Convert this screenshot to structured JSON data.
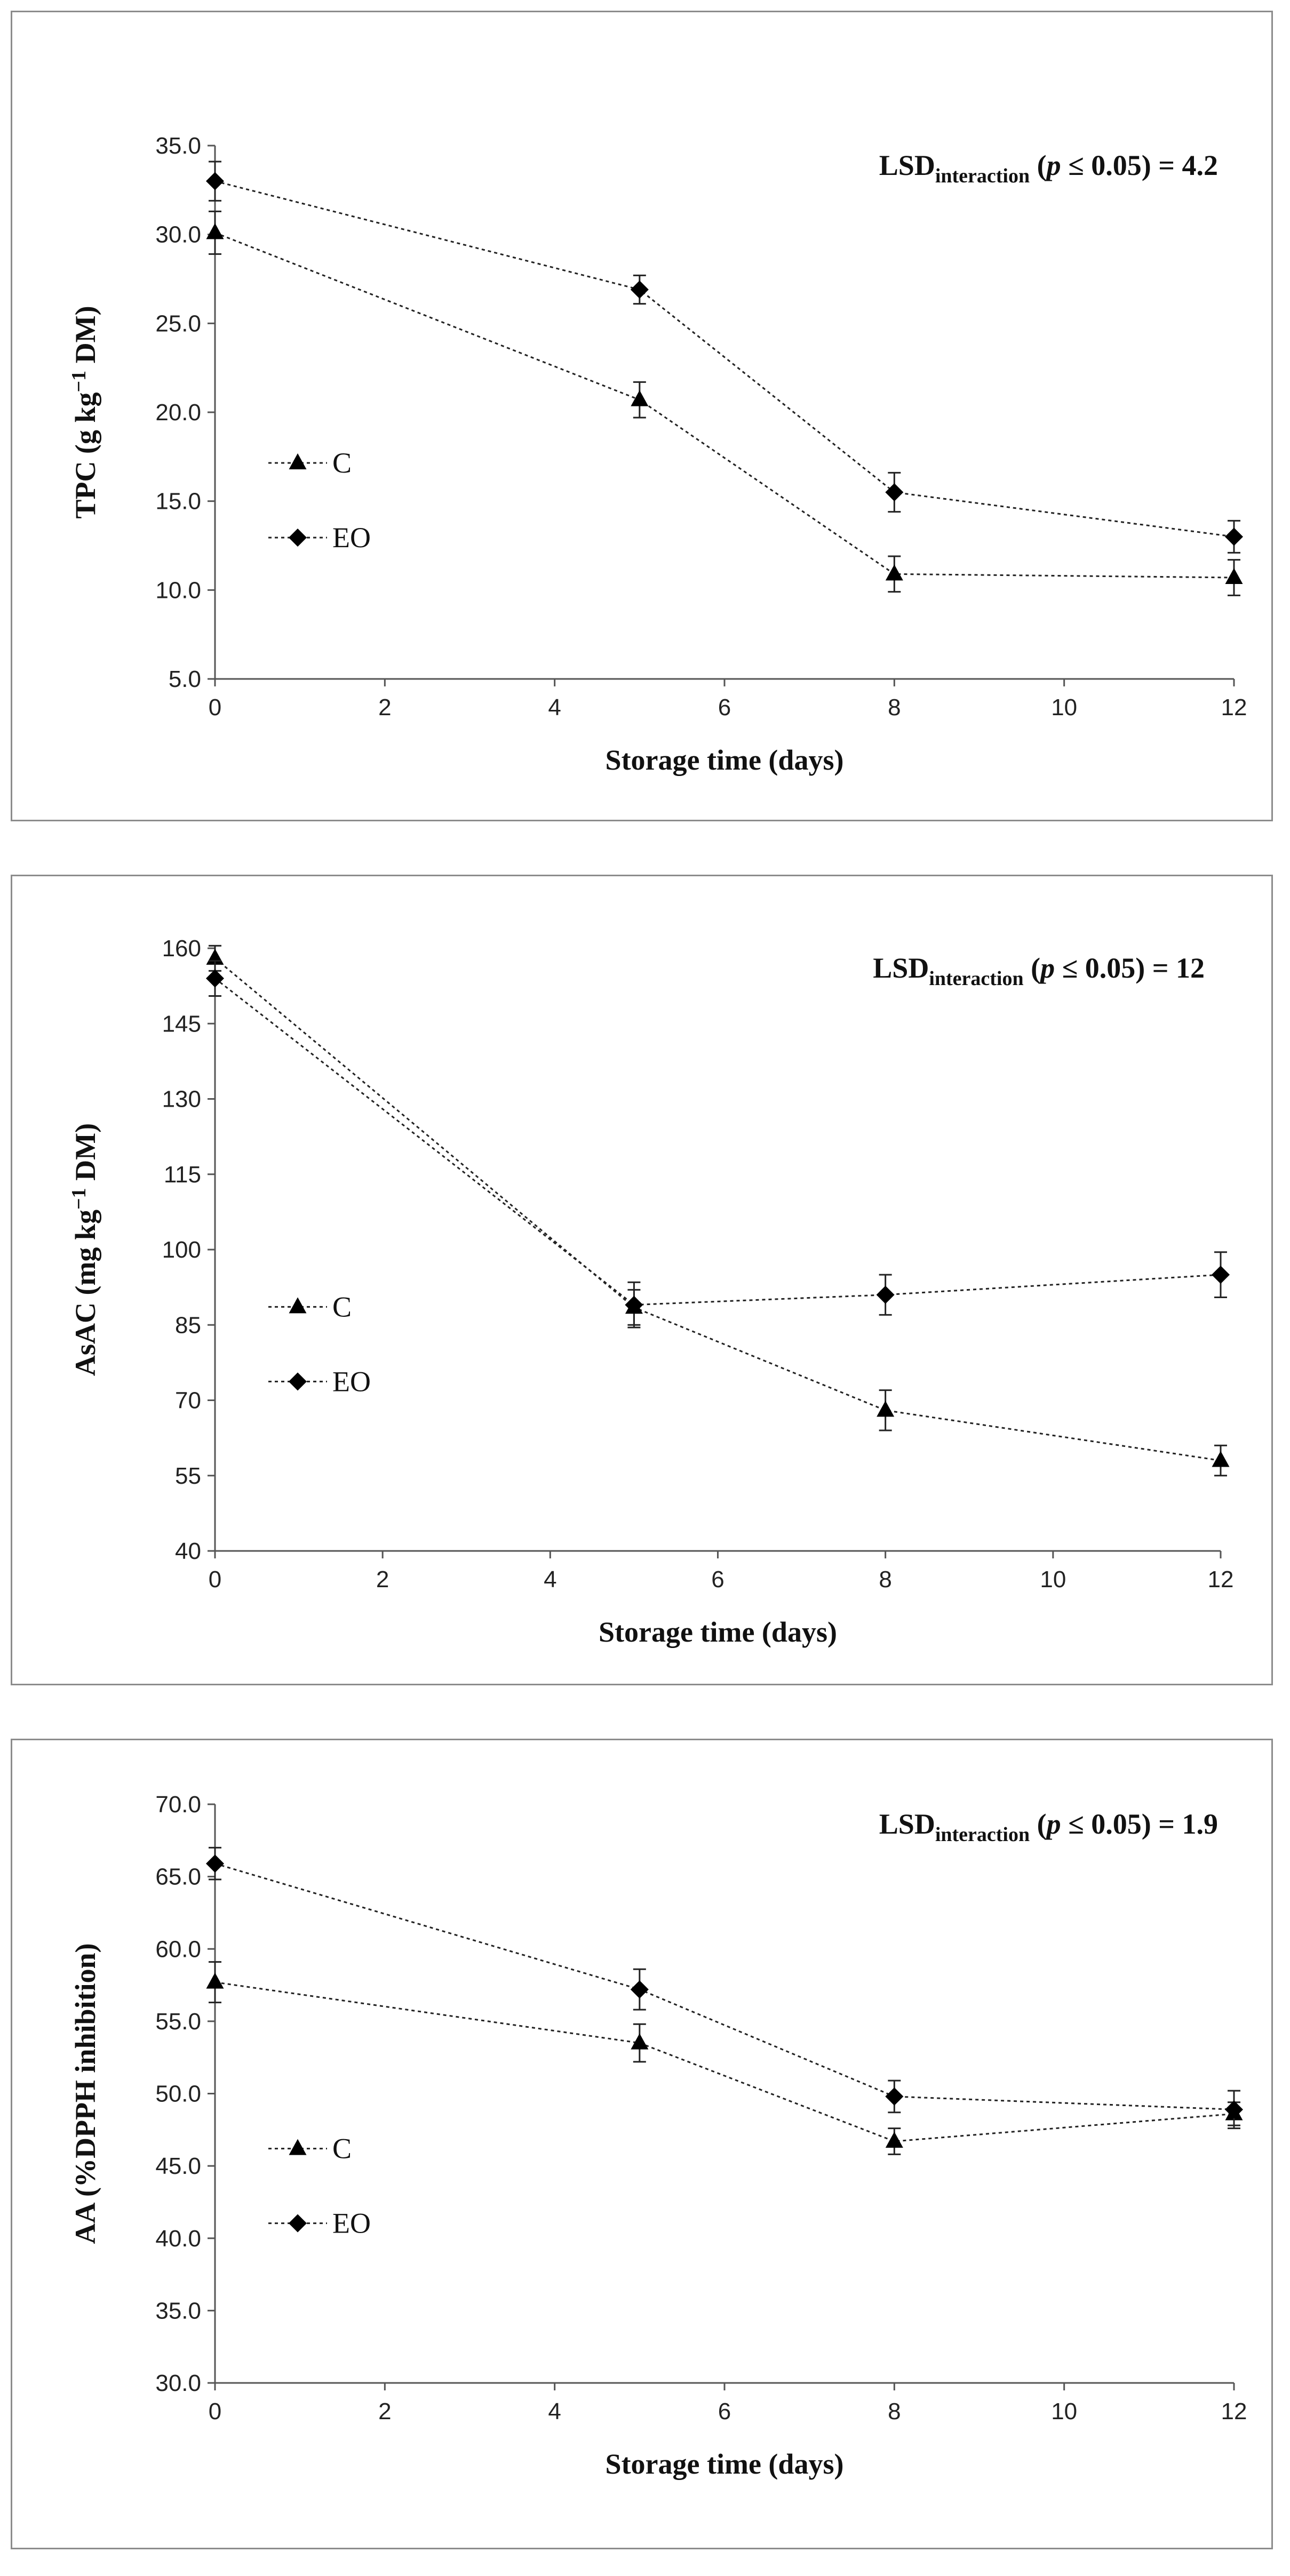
{
  "chart_data": [
    {
      "type": "line",
      "ylabel_main": "TPC (g  kg",
      "ylabel_sup": "−1",
      "ylabel_tail": " DM)",
      "xlabel": "Storage time (days)",
      "annotation": {
        "prefix": "LSD",
        "sub": "interaction",
        "open": " (",
        "p": "p",
        "cond": " ≤ 0.05) = 4.2"
      },
      "xlim": [
        0,
        12
      ],
      "xticks": [
        0,
        2,
        4,
        6,
        8,
        10,
        12
      ],
      "xtick_labels": [
        "0",
        "2",
        "4",
        "6",
        "8",
        "10",
        "12"
      ],
      "ylim": [
        5,
        35
      ],
      "yticks": [
        5,
        10,
        15,
        20,
        25,
        30,
        35
      ],
      "ytick_labels": [
        "5.0",
        "10.0",
        "15.0",
        "20.0",
        "25.0",
        "30.0",
        "35.0"
      ],
      "x": [
        0,
        5,
        8,
        12
      ],
      "series": [
        {
          "name": "C",
          "marker": "triangle",
          "values": [
            30.1,
            20.7,
            10.9,
            10.7
          ],
          "errors": [
            1.2,
            1.0,
            1.0,
            1.0
          ]
        },
        {
          "name": "EO",
          "marker": "diamond",
          "values": [
            33.0,
            26.9,
            15.5,
            13.0
          ],
          "errors": [
            1.1,
            0.8,
            1.1,
            0.9
          ]
        }
      ],
      "legend": {
        "position": "left-middle",
        "entries": [
          "C",
          "EO"
        ]
      }
    },
    {
      "type": "line",
      "ylabel_main": "AsAC (mg  kg",
      "ylabel_sup": "−1",
      "ylabel_tail": " DM)",
      "xlabel": "Storage time (days)",
      "annotation": {
        "prefix": "LSD",
        "sub": "interaction",
        "open": " (",
        "p": "p",
        "cond": " ≤ 0.05) = 12"
      },
      "xlim": [
        0,
        12
      ],
      "xticks": [
        0,
        2,
        4,
        6,
        8,
        10,
        12
      ],
      "xtick_labels": [
        "0",
        "2",
        "4",
        "6",
        "8",
        "10",
        "12"
      ],
      "ylim": [
        40,
        160
      ],
      "yticks": [
        40,
        55,
        70,
        85,
        100,
        115,
        130,
        145,
        160
      ],
      "ytick_labels": [
        "40",
        "55",
        "70",
        "85",
        "100",
        "115",
        "130",
        "145",
        "160"
      ],
      "x": [
        0,
        5,
        8,
        12
      ],
      "series": [
        {
          "name": "C",
          "marker": "triangle",
          "values": [
            158,
            88.5,
            68,
            58
          ],
          "errors": [
            2.5,
            3.5,
            4.0,
            3.0
          ]
        },
        {
          "name": "EO",
          "marker": "diamond",
          "values": [
            154,
            89,
            91,
            95
          ],
          "errors": [
            3.5,
            4.5,
            4.0,
            4.5
          ]
        }
      ],
      "legend": {
        "position": "left-middle",
        "entries": [
          "C",
          "EO"
        ]
      }
    },
    {
      "type": "line",
      "ylabel_main": "AA (%DPPH inhibition)",
      "ylabel_sup": "",
      "ylabel_tail": "",
      "xlabel": "Storage time (days)",
      "annotation": {
        "prefix": "LSD",
        "sub": "interaction",
        "open": " (",
        "p": "p",
        "cond": " ≤ 0.05) = 1.9"
      },
      "xlim": [
        0,
        12
      ],
      "xticks": [
        0,
        2,
        4,
        6,
        8,
        10,
        12
      ],
      "xtick_labels": [
        "0",
        "2",
        "4",
        "6",
        "8",
        "10",
        "12"
      ],
      "ylim": [
        30,
        70
      ],
      "yticks": [
        30,
        35,
        40,
        45,
        50,
        55,
        60,
        65,
        70
      ],
      "ytick_labels": [
        "30.0",
        "35.0",
        "40.0",
        "45.0",
        "50.0",
        "55.0",
        "60.0",
        "65.0",
        "70.0"
      ],
      "x": [
        0,
        5,
        8,
        12
      ],
      "series": [
        {
          "name": "C",
          "marker": "triangle",
          "values": [
            57.7,
            53.5,
            46.7,
            48.6
          ],
          "errors": [
            1.4,
            1.3,
            0.9,
            0.8
          ]
        },
        {
          "name": "EO",
          "marker": "diamond",
          "values": [
            65.9,
            57.2,
            49.8,
            48.9
          ],
          "errors": [
            1.1,
            1.4,
            1.1,
            1.3
          ]
        }
      ],
      "legend": {
        "position": "left-middle",
        "entries": [
          "C",
          "EO"
        ]
      }
    }
  ]
}
